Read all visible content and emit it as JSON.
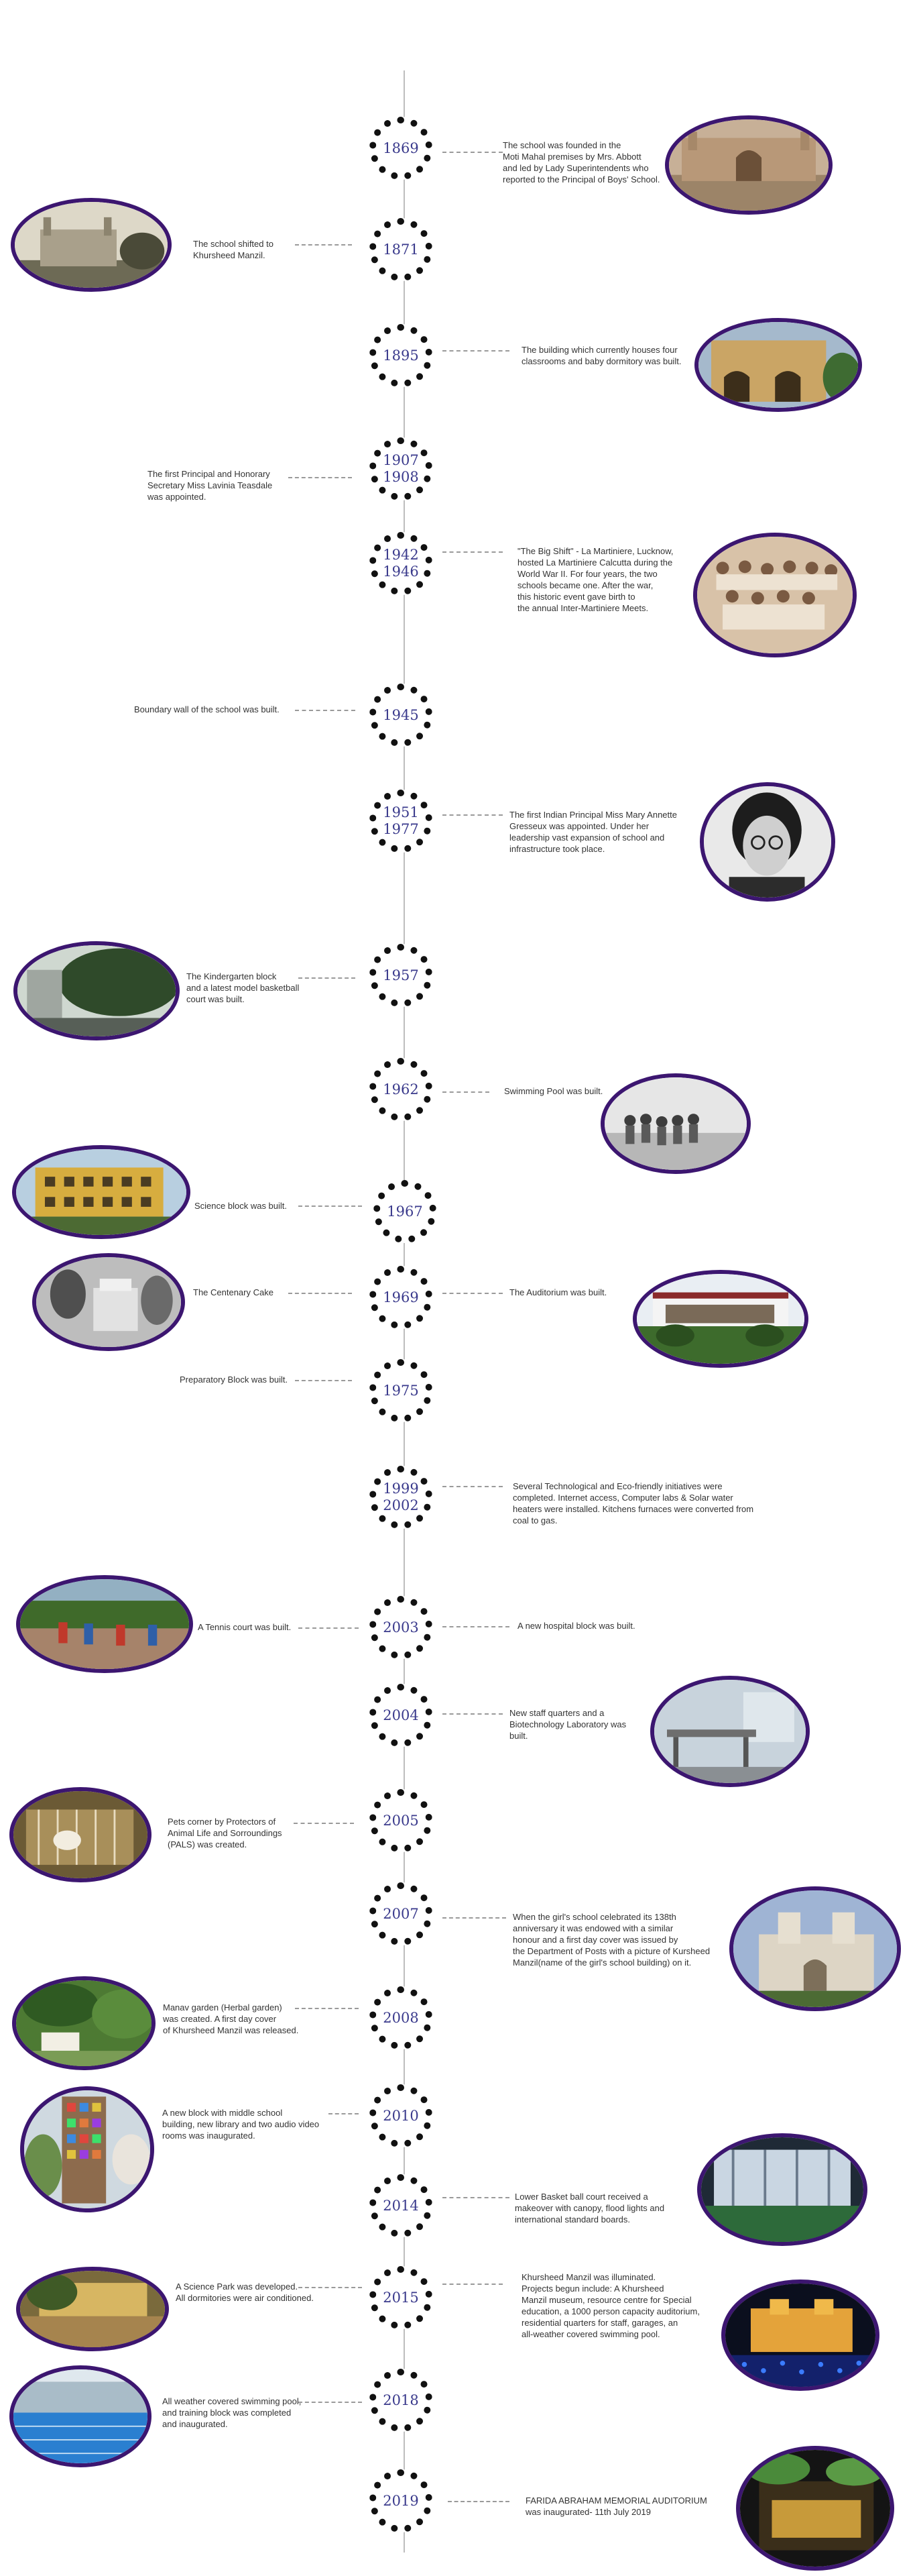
{
  "timeline": [
    {
      "year": "1869",
      "text": "The school was founded in the\nMoti Mahal premises by Mrs. Abbott\nand led by Lady Superintendents who\nreported to the Principal of Boys' School."
    },
    {
      "year": "1871",
      "text": "The school shifted to\nKhursheed Manzil."
    },
    {
      "year": "1895",
      "text": "The building which currently houses four\nclassrooms and baby dormitory was built."
    },
    {
      "year": "1907\n1908",
      "text": "The first Principal and Honorary\nSecretary Miss Lavinia Teasdale\nwas appointed."
    },
    {
      "year": "1942\n1946",
      "text": "\"The Big Shift\" - La Martiniere, Lucknow,\nhosted La Martiniere Calcutta during the\nWorld War II. For four years, the two\nschools became one. After the war,\nthis historic event gave birth to\nthe annual Inter-Martiniere Meets."
    },
    {
      "year": "1945",
      "text": "Boundary wall of the school was built."
    },
    {
      "year": "1951\n1977",
      "text": "The first Indian Principal Miss Mary Annette\nGresseux was appointed. Under her\nleadership vast expansion of school and\ninfrastructure took place."
    },
    {
      "year": "1957",
      "text": "The Kindergarten block\nand a latest model basketball\ncourt was built."
    },
    {
      "year": "1962",
      "text": "Swimming Pool was built."
    },
    {
      "year": "1967",
      "text": "Science block was built."
    },
    {
      "year": "1969",
      "text_left": "The Centenary Cake",
      "text_right": "The Auditorium was built."
    },
    {
      "year": "1975",
      "text": "Preparatory Block was built."
    },
    {
      "year": "1999\n2002",
      "text": "Several Technological and Eco-friendly initiatives were\ncompleted. Internet access, Computer labs & Solar water\nheaters were installed. Kitchens furnaces were converted from\ncoal to gas."
    },
    {
      "year": "2003",
      "text_left": "A Tennis court was built.",
      "text_right": "A new hospital block was built."
    },
    {
      "year": "2004",
      "text": "New staff quarters and a\nBiotechnology Laboratory was\nbuilt."
    },
    {
      "year": "2005",
      "text": "Pets corner by Protectors of\nAnimal Life and Sorroundings\n(PALS) was created."
    },
    {
      "year": "2007",
      "text": "When the girl's school celebrated its 138th\n anniversary it was endowed with a similar\nhonour and a first day cover was issued by\nthe Department of Posts with a picture of Kursheed\nManzil(name of the girl's school building) on it."
    },
    {
      "year": "2008",
      "text": "Manav garden (Herbal garden)\nwas created.  A first day cover\nof Khursheed Manzil was released."
    },
    {
      "year": "2010",
      "text": "A new block with middle school\nbuilding, new library and two audio video\nrooms was inaugurated."
    },
    {
      "year": "2014",
      "text": "Lower Basket ball court received a\n makeover with canopy, flood lights and\ninternational standard boards."
    },
    {
      "year": "2015",
      "text_left": "A Science Park was developed.\nAll dormitories were air conditioned.",
      "text_right": "Khursheed Manzil was illuminated.\nProjects begun include: A Khursheed\nManzil museum, resource centre for Special\neducation, a 1000 person capacity auditorium,\nresidential quarters for staff, garages, an\nall-weather covered swimming pool."
    },
    {
      "year": "2018",
      "text": "All weather covered swimming pool,\nand training block was completed\nand inaugurated."
    },
    {
      "year": "2019",
      "text": "FARIDA ABRAHAM MEMORIAL AUDITORIUM\nwas inaugurated- 11th July 2019"
    }
  ],
  "colors": {
    "frame": "#3c1670",
    "year_text": "#3a3a8c",
    "node_dots": "#111111",
    "axis": "#bdbdbd"
  }
}
